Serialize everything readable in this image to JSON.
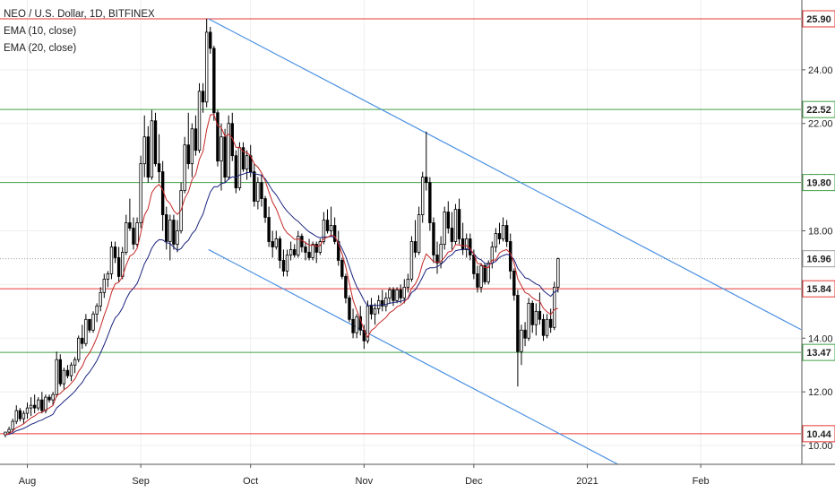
{
  "chart_data": {
    "type": "candlestick",
    "title": "NEO / U.S. Dollar, 1D, BITFINEX",
    "indicators": [
      "EMA (10, close)",
      "EMA (20, close)"
    ],
    "last_price": 16.96,
    "ylim": [
      9.3,
      26.4
    ],
    "y_ticks": [
      "10.00",
      "12.00",
      "14.00",
      "16.00",
      "18.00",
      "20.00",
      "22.00",
      "24.00"
    ],
    "x_ticks": [
      "Aug",
      "Sep",
      "Oct",
      "Nov",
      "Dec",
      "2021",
      "Feb"
    ],
    "x_tick_days": [
      6,
      37,
      67,
      98,
      128,
      159,
      190
    ],
    "horizontal_levels": [
      {
        "value": 25.9,
        "label": "25.90",
        "color": "#e53935"
      },
      {
        "value": 22.52,
        "label": "22.52",
        "color": "#43a047"
      },
      {
        "value": 19.8,
        "label": "19.80",
        "color": "#43a047"
      },
      {
        "value": 16.96,
        "label": "16.96",
        "color": "#9e9e9e",
        "style": "dotted"
      },
      {
        "value": 15.84,
        "label": "15.84",
        "color": "#e53935"
      },
      {
        "value": 13.47,
        "label": "13.47",
        "color": "#43a047"
      },
      {
        "value": 10.44,
        "label": "10.44",
        "color": "#e53935"
      }
    ],
    "trendlines": [
      {
        "from": {
          "day": 55.5,
          "value": 25.9
        },
        "to": {
          "day": 180.5,
          "value": 16.96
        },
        "color": "#4a90e2"
      },
      {
        "from": {
          "day": 55.5,
          "value": 17.3
        },
        "to": {
          "day": 180.5,
          "value": 8.36
        },
        "color": "#4a90e2"
      }
    ],
    "colors": {
      "up": "#ffffff",
      "down": "#000000",
      "wick": "#000000",
      "ema10": "#c62828",
      "ema20": "#1a237e",
      "grid": "#eeeeee"
    },
    "candles": [
      [
        10.4,
        10.5,
        10.3,
        10.5
      ],
      [
        10.5,
        10.7,
        10.4,
        10.6
      ],
      [
        10.6,
        11.0,
        10.5,
        10.9
      ],
      [
        10.9,
        11.5,
        10.8,
        11.3
      ],
      [
        11.3,
        11.4,
        10.9,
        11.0
      ],
      [
        11.0,
        11.3,
        10.8,
        11.2
      ],
      [
        11.2,
        11.6,
        11.0,
        11.4
      ],
      [
        11.4,
        11.8,
        11.1,
        11.5
      ],
      [
        11.5,
        11.9,
        11.2,
        11.4
      ],
      [
        11.4,
        11.8,
        11.3,
        11.7
      ],
      [
        11.7,
        12.0,
        11.2,
        11.3
      ],
      [
        11.3,
        11.9,
        11.2,
        11.8
      ],
      [
        11.8,
        11.9,
        11.6,
        11.7
      ],
      [
        11.7,
        12.0,
        11.5,
        11.9
      ],
      [
        11.9,
        13.5,
        11.8,
        13.2
      ],
      [
        13.2,
        13.4,
        12.2,
        12.3
      ],
      [
        12.3,
        12.9,
        12.1,
        12.8
      ],
      [
        12.8,
        13.0,
        12.5,
        12.6
      ],
      [
        12.6,
        13.1,
        12.4,
        13.0
      ],
      [
        13.0,
        13.3,
        12.7,
        13.2
      ],
      [
        13.2,
        14.1,
        13.1,
        14.0
      ],
      [
        14.0,
        14.5,
        13.6,
        13.8
      ],
      [
        13.8,
        14.9,
        13.7,
        14.7
      ],
      [
        14.7,
        14.6,
        14.2,
        14.3
      ],
      [
        14.3,
        15.0,
        14.2,
        14.9
      ],
      [
        14.9,
        15.3,
        14.6,
        15.2
      ],
      [
        15.2,
        15.9,
        15.0,
        15.7
      ],
      [
        15.7,
        16.4,
        15.5,
        16.2
      ],
      [
        16.2,
        16.5,
        15.9,
        16.4
      ],
      [
        16.4,
        17.6,
        16.2,
        17.4
      ],
      [
        17.4,
        17.6,
        16.8,
        17.0
      ],
      [
        17.0,
        17.4,
        16.1,
        16.3
      ],
      [
        16.3,
        17.4,
        16.2,
        17.2
      ],
      [
        17.2,
        18.6,
        17.1,
        18.3
      ],
      [
        18.3,
        19.2,
        18.0,
        18.1
      ],
      [
        18.1,
        18.5,
        17.3,
        17.5
      ],
      [
        17.5,
        18.5,
        17.4,
        18.3
      ],
      [
        18.3,
        20.8,
        18.1,
        20.5
      ],
      [
        20.5,
        22.3,
        20.0,
        21.5
      ],
      [
        21.5,
        21.9,
        19.8,
        20.0
      ],
      [
        20.0,
        22.5,
        19.9,
        22.1
      ],
      [
        22.1,
        22.4,
        20.4,
        20.5
      ],
      [
        20.5,
        21.6,
        19.8,
        20.2
      ],
      [
        20.2,
        20.6,
        18.0,
        18.6
      ],
      [
        18.6,
        18.9,
        17.3,
        17.6
      ],
      [
        17.6,
        18.6,
        16.9,
        18.4
      ],
      [
        18.4,
        18.6,
        17.3,
        17.5
      ],
      [
        17.5,
        18.4,
        17.2,
        18.0
      ],
      [
        18.0,
        19.8,
        17.9,
        19.5
      ],
      [
        19.5,
        21.5,
        19.4,
        21.2
      ],
      [
        21.2,
        22.4,
        20.3,
        20.5
      ],
      [
        20.5,
        22.0,
        20.0,
        21.8
      ],
      [
        21.8,
        22.3,
        20.8,
        21.0
      ],
      [
        21.0,
        23.5,
        20.9,
        23.2
      ],
      [
        23.2,
        23.5,
        22.4,
        22.8
      ],
      [
        22.8,
        25.9,
        22.6,
        25.4
      ],
      [
        25.4,
        25.6,
        24.6,
        24.8
      ],
      [
        24.8,
        24.9,
        22.1,
        22.4
      ],
      [
        22.4,
        22.5,
        20.4,
        20.6
      ],
      [
        20.6,
        22.0,
        19.5,
        21.5
      ],
      [
        21.5,
        21.8,
        19.8,
        20.0
      ],
      [
        20.0,
        22.3,
        19.9,
        22.0
      ],
      [
        22.0,
        22.4,
        20.6,
        20.8
      ],
      [
        20.8,
        21.0,
        19.4,
        19.6
      ],
      [
        19.6,
        21.3,
        19.5,
        21.1
      ],
      [
        21.1,
        21.3,
        20.2,
        20.3
      ],
      [
        20.3,
        21.0,
        19.9,
        20.8
      ],
      [
        20.8,
        21.2,
        20.0,
        20.2
      ],
      [
        20.2,
        20.5,
        18.9,
        19.1
      ],
      [
        19.1,
        20.0,
        18.8,
        19.8
      ],
      [
        19.8,
        20.1,
        18.9,
        19.2
      ],
      [
        19.2,
        19.3,
        18.3,
        18.5
      ],
      [
        18.5,
        18.9,
        17.4,
        17.6
      ],
      [
        17.6,
        18.0,
        17.0,
        17.4
      ],
      [
        17.4,
        18.0,
        17.3,
        17.7
      ],
      [
        17.7,
        17.8,
        16.6,
        16.9
      ],
      [
        16.9,
        17.3,
        16.3,
        16.5
      ],
      [
        16.5,
        17.3,
        16.3,
        17.1
      ],
      [
        17.1,
        17.6,
        16.9,
        17.3
      ],
      [
        17.3,
        17.5,
        17.0,
        17.1
      ],
      [
        17.1,
        18.0,
        17.0,
        17.8
      ],
      [
        17.8,
        17.9,
        17.2,
        17.4
      ],
      [
        17.4,
        17.6,
        16.9,
        17.2
      ],
      [
        17.2,
        17.7,
        16.9,
        17.0
      ],
      [
        17.0,
        17.6,
        16.9,
        17.5
      ],
      [
        17.5,
        17.6,
        16.8,
        17.2
      ],
      [
        17.2,
        17.7,
        17.1,
        17.6
      ],
      [
        17.6,
        18.7,
        17.5,
        18.4
      ],
      [
        18.4,
        18.8,
        17.9,
        18.0
      ],
      [
        18.0,
        18.9,
        17.8,
        18.2
      ],
      [
        18.2,
        18.5,
        17.5,
        17.6
      ],
      [
        17.6,
        18.0,
        16.7,
        16.9
      ],
      [
        16.9,
        17.0,
        16.2,
        16.3
      ],
      [
        16.3,
        16.4,
        15.3,
        15.5
      ],
      [
        15.5,
        15.6,
        14.6,
        14.7
      ],
      [
        14.7,
        15.1,
        14.0,
        14.2
      ],
      [
        14.2,
        14.9,
        14.0,
        14.8
      ],
      [
        14.8,
        15.2,
        14.1,
        14.3
      ],
      [
        14.3,
        14.5,
        13.6,
        13.9
      ],
      [
        13.9,
        15.4,
        13.8,
        15.2
      ],
      [
        15.2,
        15.5,
        14.7,
        14.9
      ],
      [
        14.9,
        15.3,
        14.5,
        15.1
      ],
      [
        15.1,
        15.6,
        14.9,
        15.4
      ],
      [
        15.4,
        15.8,
        15.0,
        15.2
      ],
      [
        15.2,
        15.7,
        15.0,
        15.5
      ],
      [
        15.5,
        15.9,
        15.3,
        15.8
      ],
      [
        15.8,
        15.9,
        15.2,
        15.4
      ],
      [
        15.4,
        15.9,
        15.3,
        15.8
      ],
      [
        15.8,
        16.0,
        15.3,
        15.5
      ],
      [
        15.5,
        16.2,
        15.3,
        15.9
      ],
      [
        15.9,
        16.4,
        15.7,
        16.2
      ],
      [
        16.2,
        17.8,
        16.1,
        17.6
      ],
      [
        17.6,
        18.4,
        17.0,
        17.2
      ],
      [
        17.2,
        18.9,
        17.1,
        18.6
      ],
      [
        18.6,
        20.2,
        18.3,
        20.0
      ],
      [
        20.0,
        21.7,
        19.5,
        19.8
      ],
      [
        19.8,
        20.0,
        18.0,
        18.3
      ],
      [
        18.3,
        18.5,
        16.8,
        17.1
      ],
      [
        17.1,
        17.6,
        16.4,
        16.8
      ],
      [
        16.8,
        17.8,
        16.6,
        17.5
      ],
      [
        17.5,
        18.9,
        17.3,
        18.7
      ],
      [
        18.7,
        19.1,
        17.9,
        18.1
      ],
      [
        18.1,
        18.7,
        17.3,
        17.6
      ],
      [
        17.6,
        19.0,
        17.5,
        18.8
      ],
      [
        18.8,
        19.2,
        17.5,
        17.7
      ],
      [
        17.7,
        18.3,
        17.1,
        17.3
      ],
      [
        17.3,
        17.9,
        17.0,
        17.7
      ],
      [
        17.7,
        17.9,
        16.9,
        17.1
      ],
      [
        17.1,
        17.3,
        16.2,
        16.4
      ],
      [
        16.4,
        16.7,
        15.7,
        15.9
      ],
      [
        15.9,
        16.8,
        15.7,
        16.7
      ],
      [
        16.7,
        16.8,
        16.0,
        16.1
      ],
      [
        16.1,
        16.9,
        16.0,
        16.8
      ],
      [
        16.8,
        17.6,
        16.6,
        17.4
      ],
      [
        17.4,
        18.1,
        17.2,
        17.9
      ],
      [
        17.9,
        18.3,
        17.5,
        17.7
      ],
      [
        17.7,
        18.5,
        17.6,
        18.2
      ],
      [
        18.2,
        18.4,
        17.4,
        17.6
      ],
      [
        17.6,
        17.9,
        16.2,
        16.5
      ],
      [
        16.5,
        16.6,
        15.4,
        15.6
      ],
      [
        15.6,
        15.8,
        12.2,
        13.5
      ],
      [
        13.5,
        14.5,
        13.0,
        14.3
      ],
      [
        14.3,
        14.6,
        13.7,
        14.0
      ],
      [
        14.0,
        15.5,
        13.9,
        15.3
      ],
      [
        15.3,
        15.4,
        14.2,
        14.5
      ],
      [
        14.5,
        15.3,
        14.1,
        15.0
      ],
      [
        15.0,
        15.7,
        14.5,
        14.7
      ],
      [
        14.7,
        14.9,
        13.9,
        14.1
      ],
      [
        14.1,
        14.9,
        14.0,
        14.7
      ],
      [
        14.7,
        15.1,
        14.2,
        14.4
      ],
      [
        14.4,
        16.1,
        14.3,
        15.9
      ],
      [
        15.9,
        17.0,
        15.7,
        16.96
      ]
    ],
    "ema10": [
      10.4,
      10.44,
      10.54,
      10.67,
      10.73,
      10.81,
      10.92,
      11.03,
      11.1,
      11.21,
      11.23,
      11.33,
      11.4,
      11.49,
      11.86,
      11.94,
      12.08,
      12.17,
      12.32,
      12.48,
      12.76,
      12.95,
      13.27,
      13.45,
      13.71,
      14.02,
      14.42,
      14.85,
      15.22,
      15.71,
      16.03,
      16.08,
      16.29,
      16.72,
      17.06,
      17.14,
      17.35,
      17.92,
      18.58,
      18.83,
      19.42,
      19.62,
      19.73,
      19.52,
      19.16,
      19.02,
      18.75,
      18.61,
      18.77,
      19.21,
      19.45,
      19.9,
      20.1,
      20.66,
      20.96,
      21.77,
      22.32,
      22.34,
      21.92,
      21.85,
      21.52,
      21.6,
      21.45,
      21.11,
      21.11,
      20.95,
      20.92,
      20.79,
      20.5,
      20.37,
      20.16,
      19.86,
      19.45,
      19.07,
      18.82,
      18.47,
      18.11,
      17.92,
      17.81,
      17.68,
      17.7,
      17.64,
      17.56,
      17.46,
      17.47,
      17.42,
      17.45,
      17.71,
      17.76,
      17.84,
      17.8,
      17.54,
      17.14,
      16.66,
      16.03,
      15.42,
      15.03,
      14.71,
      14.3,
      14.04,
      14.29,
      14.39,
      14.55,
      14.66,
      14.77,
      14.95,
      15.03,
      15.17,
      15.23,
      15.35,
      15.5,
      15.86,
      16.02,
      16.3,
      16.79,
      17.14,
      17.0,
      16.85,
      16.83,
      16.86,
      17.01,
      17.21,
      17.25,
      17.49,
      17.47,
      17.44,
      17.45,
      17.34,
      17.13,
      16.78,
      16.76,
      16.63,
      16.63,
      16.91,
      16.91,
      17.18,
      17.26,
      17.3,
      17.16,
      16.8,
      16.21,
      15.95,
      15.7,
      15.64,
      15.51,
      15.42,
      15.38,
      15.11,
      14.98,
      14.88,
      15.07,
      15.11
    ],
    "ema20": [
      10.4,
      10.42,
      10.47,
      10.55,
      10.59,
      10.64,
      10.71,
      10.79,
      10.84,
      10.91,
      10.95,
      11.03,
      11.09,
      11.16,
      11.4,
      11.51,
      11.65,
      11.76,
      11.89,
      12.02,
      12.2,
      12.35,
      12.58,
      12.74,
      12.94,
      13.16,
      13.45,
      13.76,
      14.1,
      14.46,
      14.76,
      14.9,
      15.12,
      15.46,
      15.71,
      15.86,
      16.04,
      16.38,
      16.77,
      17.02,
      17.35,
      17.56,
      17.67,
      17.66,
      17.56,
      17.53,
      17.39,
      17.27,
      17.34,
      17.53,
      17.65,
      17.89,
      18.04,
      18.36,
      18.62,
      19.07,
      19.45,
      19.64,
      19.64,
      19.76,
      19.79,
      19.93,
      20.01,
      19.98,
      20.08,
      20.11,
      20.17,
      20.18,
      20.13,
      20.1,
      20.07,
      19.94,
      19.72,
      19.5,
      19.34,
      19.12,
      18.9,
      18.73,
      18.59,
      18.45,
      18.35,
      18.21,
      18.08,
      17.96,
      17.88,
      17.79,
      17.74,
      17.77,
      17.77,
      17.79,
      17.76,
      17.58,
      17.34,
      17.04,
      16.65,
      16.25,
      15.92,
      15.68,
      15.41,
      15.2,
      15.24,
      15.22,
      15.22,
      15.25,
      15.26,
      15.3,
      15.33,
      15.35,
      15.37,
      15.42,
      15.47,
      15.7,
      15.8,
      16.02,
      16.28,
      16.56,
      16.62,
      16.62,
      16.66,
      16.75,
      16.87,
      17.03,
      17.11,
      17.26,
      17.29,
      17.3,
      17.33,
      17.27,
      17.15,
      16.98,
      16.92,
      16.79,
      16.74,
      16.8,
      16.86,
      17.01,
      17.08,
      17.13,
      17.09,
      16.93,
      16.6,
      16.43,
      16.25,
      16.21,
      16.11,
      16.02,
      15.96,
      15.77,
      15.66,
      15.56,
      15.72,
      15.78
    ]
  }
}
